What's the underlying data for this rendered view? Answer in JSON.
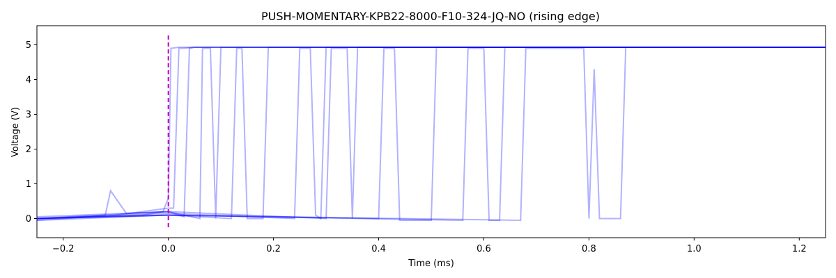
{
  "chart_data": {
    "type": "line",
    "title": "PUSH-MOMENTARY-KPB22-8000-F10-324-JQ-NO (rising edge)",
    "xlabel": "Time (ms)",
    "ylabel": "Voltage (V)",
    "xlim": [
      -0.25,
      1.25
    ],
    "ylim": [
      -0.55,
      5.55
    ],
    "xticks": [
      -0.2,
      0.0,
      0.2,
      0.4,
      0.6,
      0.8,
      1.0,
      1.2
    ],
    "xtick_labels": [
      "−0.2",
      "0.0",
      "0.2",
      "0.4",
      "0.6",
      "0.8",
      "1.0",
      "1.2"
    ],
    "yticks": [
      0,
      1,
      2,
      3,
      4,
      5
    ],
    "ytick_labels": [
      "0",
      "1",
      "2",
      "3",
      "4",
      "5"
    ],
    "grid": false,
    "colors": {
      "trace": "#0000ff",
      "trigger": "#bf00bf"
    },
    "trigger_line": {
      "x": 0.0,
      "style": "dashed"
    },
    "series": [
      {
        "x": [
          -0.25,
          -0.15,
          -0.05,
          -0.01,
          0.0,
          0.005,
          0.02,
          1.25
        ],
        "y": [
          0.0,
          0.05,
          0.1,
          0.2,
          0.6,
          4.9,
          4.93,
          4.93
        ]
      },
      {
        "x": [
          -0.25,
          -0.1,
          0.0,
          0.01,
          0.02,
          0.03,
          0.05,
          1.25
        ],
        "y": [
          -0.05,
          0.1,
          0.3,
          0.3,
          4.9,
          4.9,
          4.93,
          4.93
        ]
      },
      {
        "x": [
          -0.25,
          -0.12,
          -0.11,
          -0.08,
          0.0,
          0.03,
          0.04,
          0.05,
          1.25
        ],
        "y": [
          0.0,
          0.1,
          0.8,
          0.15,
          0.2,
          0.05,
          4.9,
          4.93,
          4.93
        ]
      },
      {
        "x": [
          -0.25,
          0.0,
          0.06,
          0.065,
          0.08,
          0.09,
          0.1,
          1.25
        ],
        "y": [
          0.0,
          0.2,
          0.0,
          4.9,
          4.9,
          0.0,
          4.93,
          4.93
        ]
      },
      {
        "x": [
          -0.25,
          0.0,
          0.12,
          0.13,
          0.14,
          0.15,
          0.18,
          0.19,
          1.25
        ],
        "y": [
          -0.05,
          0.1,
          0.0,
          4.9,
          4.9,
          0.0,
          0.0,
          4.93,
          4.93
        ]
      },
      {
        "x": [
          -0.25,
          0.0,
          0.24,
          0.25,
          0.27,
          0.28,
          0.29,
          0.3,
          1.25
        ],
        "y": [
          0.0,
          0.15,
          0.0,
          4.9,
          4.9,
          0.1,
          0.0,
          4.93,
          4.93
        ]
      },
      {
        "x": [
          -0.25,
          0.0,
          0.3,
          0.31,
          0.34,
          0.35,
          0.36,
          1.25
        ],
        "y": [
          0.05,
          0.2,
          0.0,
          4.9,
          4.9,
          0.0,
          4.93,
          4.93
        ]
      },
      {
        "x": [
          -0.25,
          0.0,
          0.4,
          0.41,
          0.43,
          0.44,
          0.5,
          0.51,
          1.25
        ],
        "y": [
          0.0,
          0.1,
          0.0,
          4.9,
          4.9,
          -0.05,
          -0.05,
          4.93,
          4.93
        ]
      },
      {
        "x": [
          -0.25,
          0.0,
          0.56,
          0.57,
          0.6,
          0.61,
          0.63,
          0.64,
          1.25
        ],
        "y": [
          0.0,
          0.1,
          -0.05,
          4.9,
          4.9,
          -0.05,
          -0.05,
          4.93,
          4.93
        ]
      },
      {
        "x": [
          -0.25,
          0.0,
          0.67,
          0.68,
          0.79,
          0.8,
          0.81,
          0.82,
          0.86,
          0.87,
          1.25
        ],
        "y": [
          0.0,
          0.1,
          -0.05,
          4.9,
          4.9,
          0.0,
          4.3,
          0.0,
          0.0,
          4.93,
          4.93
        ]
      }
    ]
  }
}
